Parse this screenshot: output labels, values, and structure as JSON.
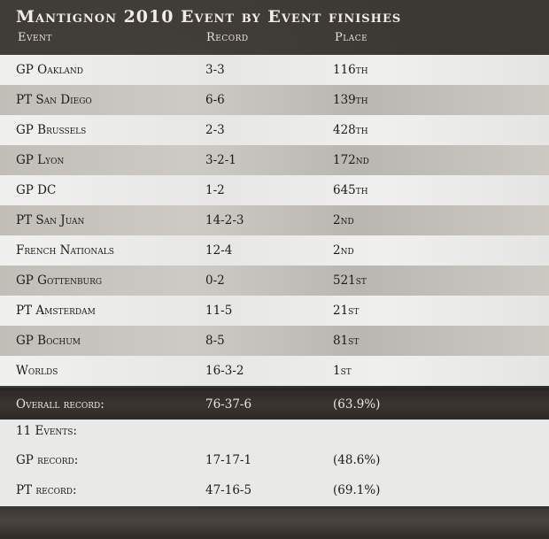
{
  "title": "Mantignon 2010 Event by Event finishes",
  "columns": {
    "event": "Event",
    "record": "Record",
    "place": "Place"
  },
  "events": [
    {
      "event": "GP Oakland",
      "record": "3-3",
      "place": "116th"
    },
    {
      "event": "PT San Diego",
      "record": "6-6",
      "place": "139th"
    },
    {
      "event": "GP Brussels",
      "record": "2-3",
      "place": "428th"
    },
    {
      "event": "GP Lyon",
      "record": "3-2-1",
      "place": "172nd"
    },
    {
      "event": "GP DC",
      "record": "1-2",
      "place": "645th"
    },
    {
      "event": "PT San Juan",
      "record": "14-2-3",
      "place": "2nd"
    },
    {
      "event": "French Nationals",
      "record": "12-4",
      "place": "2nd"
    },
    {
      "event": "GP Gottenburg",
      "record": "0-2",
      "place": "521st"
    },
    {
      "event": "PT Amsterdam",
      "record": "11-5",
      "place": "21st"
    },
    {
      "event": "GP Bochum",
      "record": "8-5",
      "place": "81st"
    },
    {
      "event": "Worlds",
      "record": "16-3-2",
      "place": "1st"
    }
  ],
  "overall": {
    "label": "Overall record:",
    "record": "76-37-6",
    "pct": "(63.9%)"
  },
  "summary": {
    "events_count": "11 Events:",
    "gp": {
      "label": "GP record:",
      "record": "17-17-1",
      "pct": "(48.6%)"
    },
    "pt": {
      "label": "PT record:",
      "record": "47-16-5",
      "pct": "(69.1%)"
    }
  }
}
